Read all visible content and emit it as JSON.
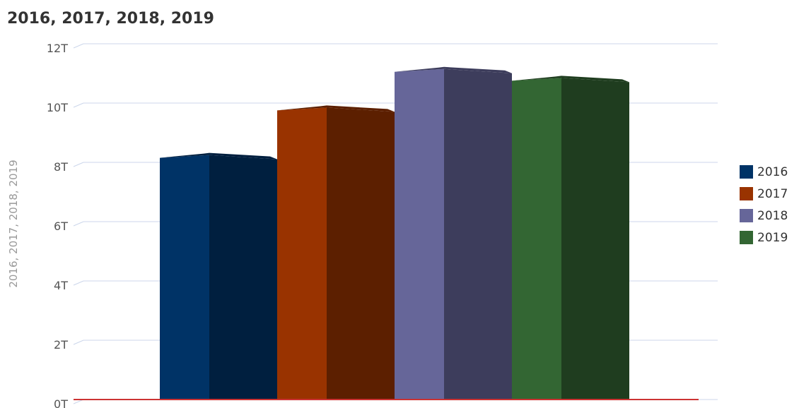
{
  "chart_data": {
    "type": "bar",
    "title": "2016, 2017, 2018, 2019",
    "ylabel": "2016, 2017, 2018, 2019",
    "xlabel": "",
    "ylim": [
      0,
      12
    ],
    "y_ticks": [
      "0T",
      "2T",
      "4T",
      "6T",
      "8T",
      "10T",
      "12T"
    ],
    "y_tick_values": [
      0,
      2,
      4,
      6,
      8,
      10,
      12
    ],
    "grid": true,
    "legend_position": "right",
    "categories": [
      ""
    ],
    "series": [
      {
        "name": "2016",
        "values": [
          8.2
        ],
        "color": "#003366",
        "dark": "#001f3f"
      },
      {
        "name": "2017",
        "values": [
          9.8
        ],
        "color": "#993300",
        "dark": "#5c1f00"
      },
      {
        "name": "2018",
        "values": [
          11.1
        ],
        "color": "#666699",
        "dark": "#3d3d5c"
      },
      {
        "name": "2019",
        "values": [
          10.8
        ],
        "color": "#336633",
        "dark": "#1f3d1f"
      }
    ]
  }
}
